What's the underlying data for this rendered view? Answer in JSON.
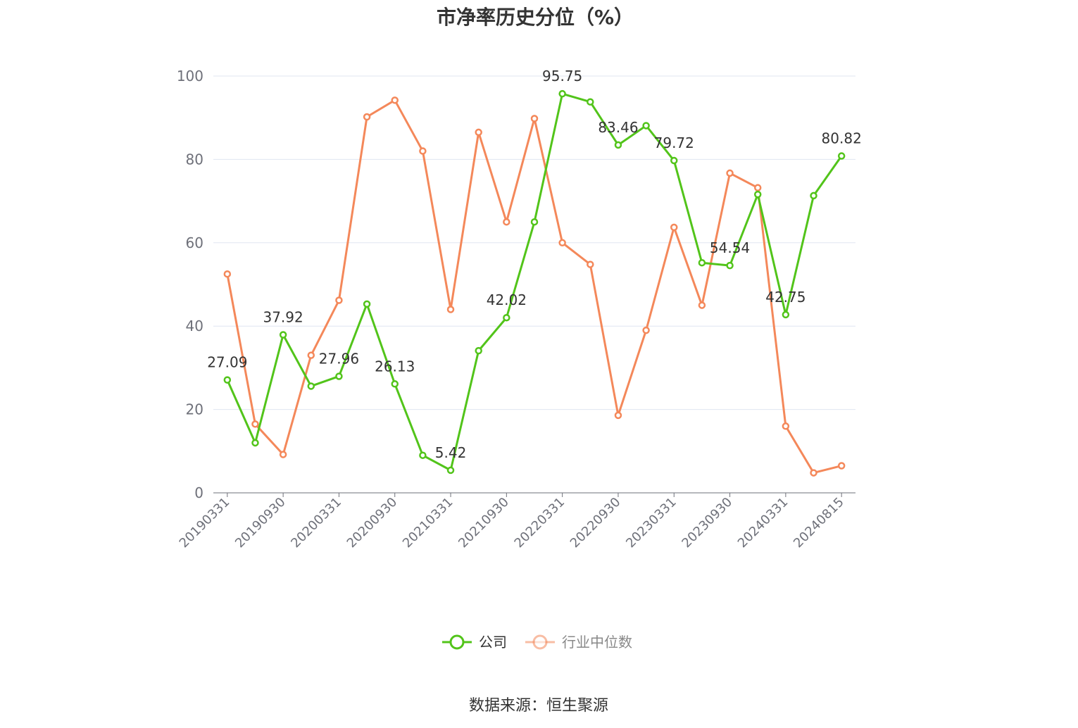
{
  "chart_data": {
    "type": "line",
    "title": "市净率历史分位（%）",
    "source": "数据来源：恒生聚源",
    "ylim": [
      0,
      100
    ],
    "yticks": [
      0,
      20,
      40,
      60,
      80,
      100
    ],
    "grid": true,
    "legend_position": "bottom-center",
    "x": [
      "20190331",
      "20190630",
      "20190930",
      "20191231",
      "20200331",
      "20200630",
      "20200930",
      "20201231",
      "20210331",
      "20210630",
      "20210930",
      "20211231",
      "20220331",
      "20220630",
      "20220930",
      "20221231",
      "20230331",
      "20230630",
      "20230930",
      "20231231",
      "20240331",
      "20240630",
      "20240815"
    ],
    "x_tick_labels": [
      "20190331",
      "20190930",
      "20200331",
      "20200930",
      "20210331",
      "20210930",
      "20220331",
      "20220930",
      "20230331",
      "20230930",
      "20240331",
      "20240815"
    ],
    "series": [
      {
        "name": "公司",
        "color": "#52c41a",
        "values": [
          27.09,
          12.0,
          37.92,
          25.6,
          27.96,
          45.3,
          26.13,
          9.0,
          5.42,
          34.1,
          42.02,
          65.0,
          95.75,
          93.8,
          83.46,
          88.1,
          79.72,
          55.2,
          54.54,
          71.6,
          42.75,
          71.3,
          80.82
        ],
        "labels": {
          "0": "27.09",
          "2": "37.92",
          "4": "27.96",
          "6": "26.13",
          "8": "5.42",
          "10": "42.02",
          "12": "95.75",
          "14": "83.46",
          "16": "79.72",
          "18": "54.54",
          "20": "42.75",
          "22": "80.82"
        }
      },
      {
        "name": "行业中位数",
        "color": "#f4885a",
        "values": [
          52.5,
          16.5,
          9.2,
          33.0,
          46.2,
          90.2,
          94.2,
          82.0,
          44.0,
          86.5,
          65.0,
          89.8,
          60.0,
          54.8,
          18.6,
          39.0,
          63.7,
          45.0,
          76.7,
          73.2,
          16.0,
          4.8,
          6.5
        ]
      }
    ]
  }
}
